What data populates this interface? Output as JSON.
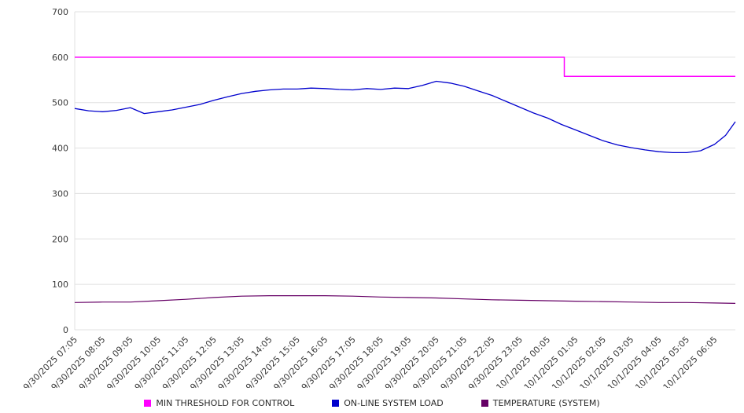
{
  "chart_data": {
    "type": "line",
    "title": "",
    "xlabel": "",
    "ylabel": "",
    "x_unit": "hours elapsed since first tick (9/30/2025 07:05)",
    "x_range": [
      0,
      23.75
    ],
    "ylim": [
      0,
      700
    ],
    "y_ticks": [
      0,
      100,
      200,
      300,
      400,
      500,
      600,
      700
    ],
    "grid": true,
    "legend_position": "bottom",
    "x_tick_labels": [
      "9/30/2025 07:05",
      "9/30/2025 08:05",
      "9/30/2025 09:05",
      "9/30/2025 10:05",
      "9/30/2025 11:05",
      "9/30/2025 12:05",
      "9/30/2025 13:05",
      "9/30/2025 14:05",
      "9/30/2025 15:05",
      "9/30/2025 16:05",
      "9/30/2025 17:05",
      "9/30/2025 18:05",
      "9/30/2025 19:05",
      "9/30/2025 20:05",
      "9/30/2025 21:05",
      "9/30/2025 22:05",
      "9/30/2025 23:05",
      "10/1/2025 00:05",
      "10/1/2025 01:05",
      "10/1/2025 02:05",
      "10/1/2025 03:05",
      "10/1/2025 04:05",
      "10/1/2025 05:05",
      "10/1/2025 06:05"
    ],
    "series": [
      {
        "name": "MIN THRESHOLD FOR CONTROL",
        "color": "#ff00ff",
        "stroke_width": 1.5,
        "x": [
          0,
          17.6,
          17.6,
          23.75
        ],
        "values": [
          600,
          600,
          558,
          558
        ]
      },
      {
        "name": "ON-LINE SYSTEM LOAD",
        "color": "#0000cd",
        "stroke_width": 1.3,
        "x": [
          0,
          0.5,
          1,
          1.5,
          2,
          2.5,
          3,
          3.5,
          4,
          4.5,
          5,
          5.5,
          6,
          6.5,
          7,
          7.5,
          8,
          8.5,
          9,
          9.5,
          10,
          10.5,
          11,
          11.5,
          12,
          12.5,
          13,
          13.5,
          14,
          14.5,
          15,
          15.5,
          16,
          16.5,
          17,
          17.5,
          18,
          18.5,
          19,
          19.5,
          20,
          20.5,
          21,
          21.5,
          22,
          22.5,
          23,
          23.4,
          23.75
        ],
        "values": [
          487,
          482,
          480,
          483,
          489,
          476,
          480,
          484,
          490,
          496,
          505,
          513,
          520,
          525,
          528,
          530,
          530,
          532,
          531,
          529,
          528,
          531,
          529,
          532,
          531,
          538,
          547,
          543,
          536,
          526,
          516,
          503,
          490,
          477,
          466,
          452,
          440,
          428,
          416,
          407,
          401,
          396,
          392,
          390,
          390,
          394,
          408,
          428,
          458
        ]
      },
      {
        "name": "TEMPERATURE (SYSTEM)",
        "color": "#660066",
        "stroke_width": 1.2,
        "x": [
          0,
          1,
          2,
          3,
          4,
          5,
          6,
          7,
          8,
          9,
          10,
          11,
          12,
          13,
          14,
          15,
          16,
          17,
          18,
          19,
          20,
          21,
          22,
          23,
          23.75
        ],
        "values": [
          60,
          61,
          61,
          64,
          67,
          71,
          74,
          75,
          75,
          75,
          74,
          72,
          71,
          70,
          68,
          66,
          65,
          64,
          63,
          62,
          61,
          60,
          60,
          59,
          58
        ]
      }
    ]
  },
  "colors": {
    "gridline": "#e0e0e0",
    "axis_text": "#3a3a3a",
    "background": "#ffffff"
  }
}
